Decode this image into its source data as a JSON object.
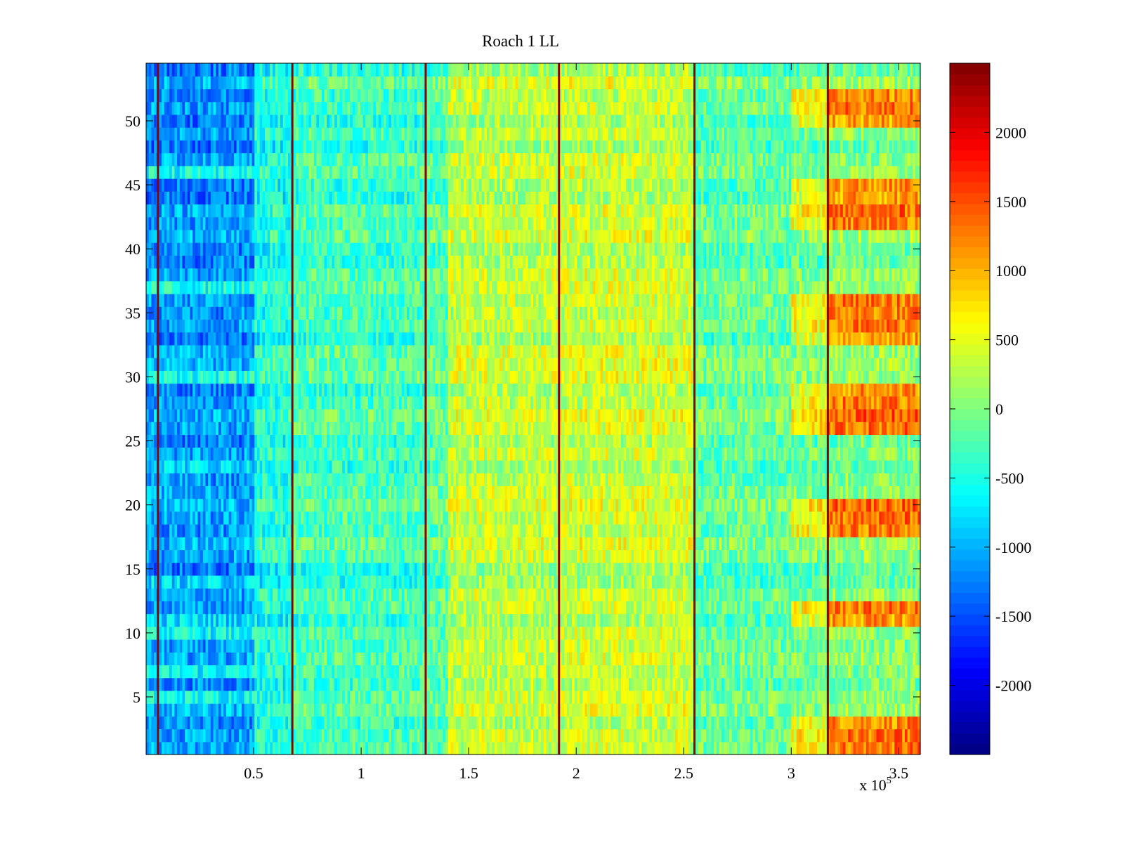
{
  "chart_data": {
    "type": "heatmap",
    "title": "Roach 1 LL",
    "xlabel": "",
    "ylabel": "",
    "x_multiplier_label": "x 10",
    "x_multiplier_exponent": "5",
    "xlim": [
      0,
      3.6
    ],
    "ylim": [
      0.5,
      54.5
    ],
    "x_ticks": [
      0.5,
      1,
      1.5,
      2,
      2.5,
      3,
      3.5
    ],
    "x_tick_labels": [
      "0.5",
      "1",
      "1.5",
      "2",
      "2.5",
      "3",
      "3.5"
    ],
    "y_ticks": [
      5,
      10,
      15,
      20,
      25,
      30,
      35,
      40,
      45,
      50
    ],
    "y_tick_labels": [
      "5",
      "10",
      "15",
      "20",
      "25",
      "30",
      "35",
      "40",
      "45",
      "50"
    ],
    "rows": 54,
    "colormap": "jet",
    "clim": [
      -2500,
      2500
    ],
    "colorbar": {
      "ticks": [
        -2000,
        -1500,
        -1000,
        -500,
        0,
        500,
        1000,
        1500,
        2000
      ],
      "tick_labels": [
        "-2000",
        "-1500",
        "-1000",
        "-500",
        "0",
        "500",
        "1000",
        "1500",
        "2000"
      ]
    },
    "vertical_line_positions": [
      0.055,
      0.68,
      1.3,
      1.92,
      2.55,
      3.17
    ],
    "segment_breaks": [
      0.5,
      0.68,
      1.3,
      1.4,
      1.92,
      2.55,
      3.0,
      3.17
    ],
    "row_bias": {
      "low_rows_early": [
        1,
        2,
        3,
        4,
        6,
        8,
        9,
        12,
        13,
        15,
        16,
        17,
        18,
        19,
        20,
        21,
        22,
        24,
        25,
        26,
        27,
        28,
        29,
        31,
        32,
        33,
        34,
        35,
        36,
        38,
        39,
        40,
        41,
        42,
        43,
        44,
        45,
        47,
        48,
        49,
        50,
        51,
        52,
        53,
        54
      ],
      "high_rows_late": [
        1,
        2,
        3,
        11,
        12,
        18,
        19,
        20,
        26,
        27,
        28,
        29,
        33,
        34,
        35,
        36,
        42,
        43,
        44,
        45,
        50,
        51,
        52
      ]
    },
    "grid": false,
    "legend": "colorbar-right"
  }
}
